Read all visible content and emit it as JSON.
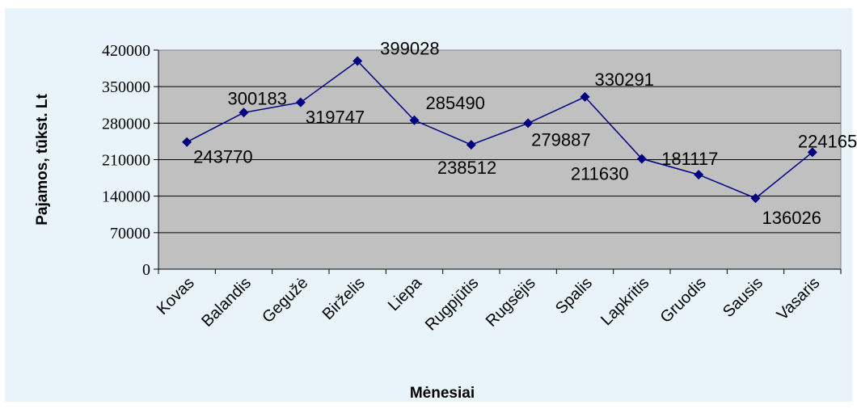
{
  "chart_data": {
    "type": "line",
    "title": "",
    "xlabel": "Mėnesiai",
    "ylabel": "Pajamos, tūkst. Lt",
    "ylim": [
      0,
      420000
    ],
    "yticks": [
      0,
      70000,
      140000,
      210000,
      280000,
      350000,
      420000
    ],
    "grid": true,
    "categories": [
      "Kovas",
      "Balandis",
      "Gegužė",
      "Birželis",
      "Liepa",
      "Rugpjūtis",
      "Rugsėjis",
      "Spalis",
      "Lapkritis",
      "Gruodis",
      "Sausis",
      "Vasaris"
    ],
    "series": [
      {
        "values": [
          243770,
          300183,
          319747,
          399028,
          285490,
          238512,
          279887,
          330291,
          211630,
          181117,
          136026,
          224165
        ],
        "labels": [
          "243770",
          "300183",
          "319747",
          "399028",
          "285490",
          "238512",
          "279887",
          "330291",
          "211630",
          "181117",
          "136026",
          "224165"
        ],
        "color": "#000080"
      }
    ],
    "colors": {
      "plot_background": "#C0C0C0",
      "chart_background": "#E8F4FA",
      "line": "#000080"
    }
  }
}
